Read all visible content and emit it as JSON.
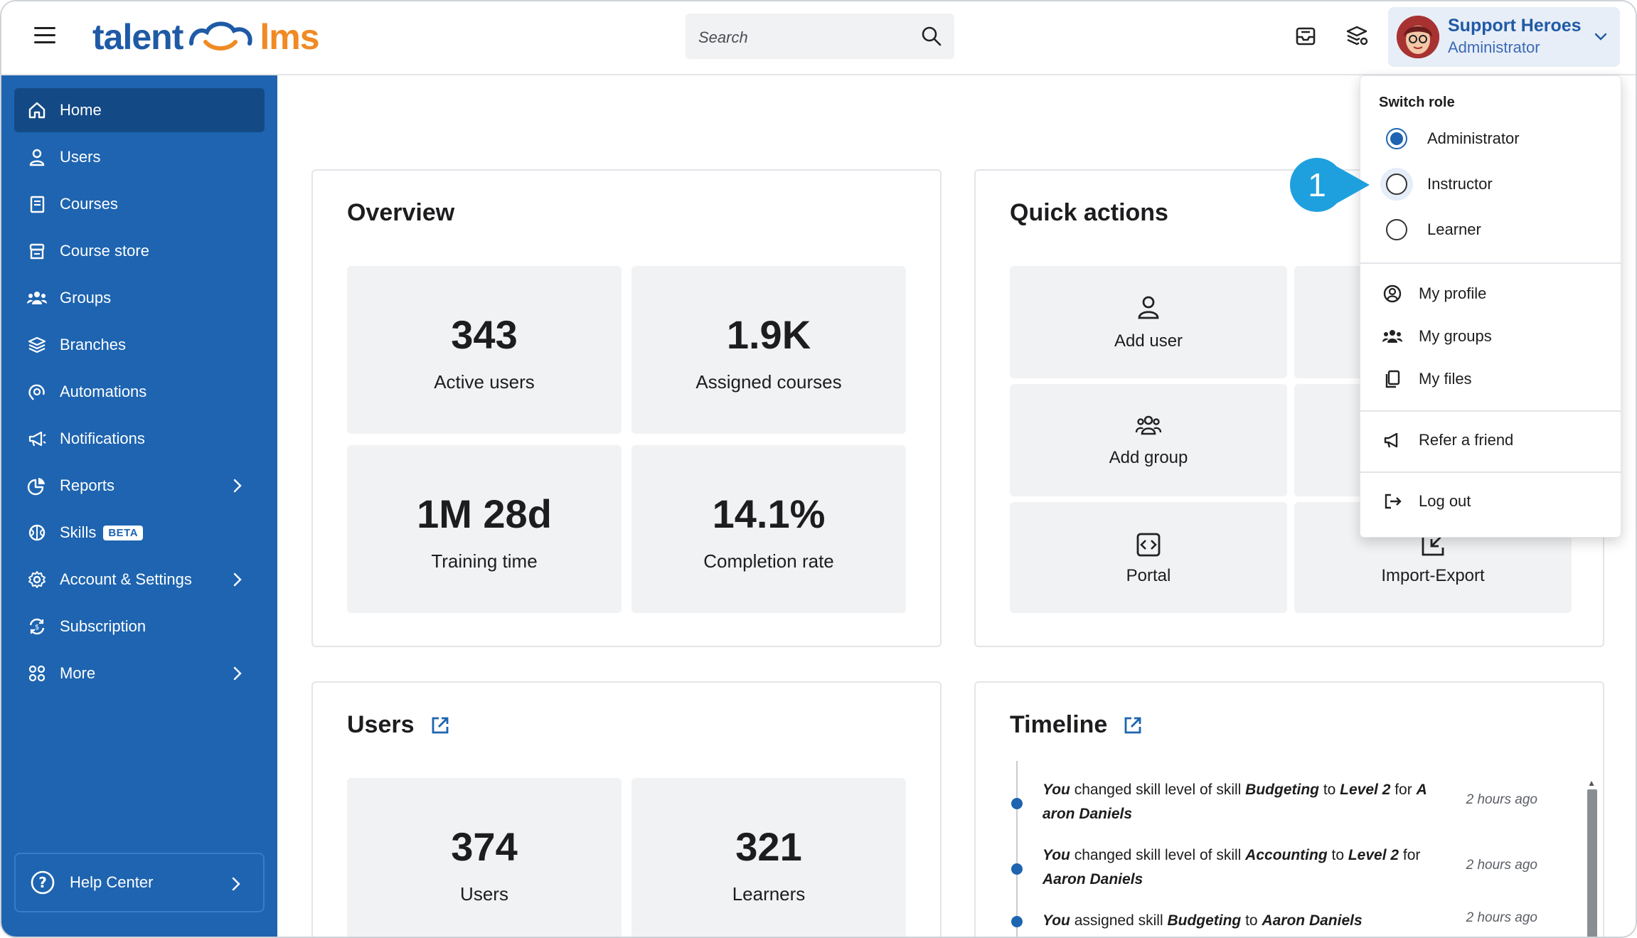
{
  "header": {
    "logo_left": "talent",
    "logo_right": "lms",
    "search_placeholder": "Search",
    "user_name": "Support Heroes",
    "user_role": "Administrator"
  },
  "sidebar": {
    "items": [
      {
        "label": "Home",
        "icon": "home-icon"
      },
      {
        "label": "Users",
        "icon": "user-icon"
      },
      {
        "label": "Courses",
        "icon": "book-icon"
      },
      {
        "label": "Course store",
        "icon": "store-icon"
      },
      {
        "label": "Groups",
        "icon": "groups-icon"
      },
      {
        "label": "Branches",
        "icon": "layers-icon"
      },
      {
        "label": "Automations",
        "icon": "automation-icon"
      },
      {
        "label": "Notifications",
        "icon": "megaphone-icon"
      },
      {
        "label": "Reports",
        "icon": "pie-chart-icon"
      },
      {
        "label": "Skills",
        "icon": "brain-icon",
        "badge": "BETA"
      },
      {
        "label": "Account & Settings",
        "icon": "gear-icon"
      },
      {
        "label": "Subscription",
        "icon": "subscription-icon"
      },
      {
        "label": "More",
        "icon": "grid-icon"
      }
    ],
    "help_label": "Help Center"
  },
  "overview": {
    "title": "Overview",
    "stats": [
      {
        "value": "343",
        "label": "Active users"
      },
      {
        "value": "1.9K",
        "label": "Assigned courses"
      },
      {
        "value": "1M 28d",
        "label": "Training time"
      },
      {
        "value": "14.1%",
        "label": "Completion rate"
      }
    ]
  },
  "quick_actions": {
    "title": "Quick actions",
    "items": [
      {
        "label": "Add user",
        "icon": "user-icon"
      },
      {
        "label": "Add group",
        "icon": "groups-icon"
      },
      {
        "label": "Portal",
        "icon": "code-icon"
      },
      {
        "label": "Import-Export",
        "icon": "import-export-icon"
      }
    ]
  },
  "users_card": {
    "title": "Users",
    "stats": [
      {
        "value": "374",
        "label": "Users"
      },
      {
        "value": "321",
        "label": "Learners"
      }
    ]
  },
  "timeline": {
    "title": "Timeline",
    "entries": [
      {
        "line1_a": "You",
        "line1_b": " changed skill level of skill ",
        "line1_c": "Budgeting",
        "line1_d": " to ",
        "line1_e": "Level 2",
        "line1_f": " for ",
        "line1_g": "A",
        "line2": "aron Daniels",
        "time": "2 hours ago"
      },
      {
        "line1_a": "You",
        "line1_b": " changed skill level of skill ",
        "line1_c": "Accounting",
        "line1_d": " to ",
        "line1_e": "Level 2",
        "line1_f": " for",
        "line2": "Aaron Daniels",
        "time": "2 hours ago"
      },
      {
        "line1_a": "You",
        "line1_b": " assigned skill ",
        "line1_c": "Budgeting",
        "line1_d": " to ",
        "line1_e": "Aaron Daniels",
        "time": "2 hours ago"
      }
    ]
  },
  "dropdown": {
    "heading": "Switch role",
    "roles": [
      {
        "label": "Administrator",
        "selected": true
      },
      {
        "label": "Instructor",
        "selected": false
      },
      {
        "label": "Learner",
        "selected": false
      }
    ],
    "items": [
      {
        "label": "My profile",
        "icon": "profile-icon"
      },
      {
        "label": "My groups",
        "icon": "groups-icon"
      },
      {
        "label": "My files",
        "icon": "files-icon"
      },
      {
        "label": "Refer a friend",
        "icon": "megaphone-icon"
      },
      {
        "label": "Log out",
        "icon": "logout-icon"
      }
    ]
  },
  "callout": {
    "number": "1"
  },
  "colors": {
    "brand_blue": "#1e64b0",
    "sidebar_active": "#134a86",
    "logo_orange": "#f08a24",
    "callout": "#1ea0de"
  }
}
